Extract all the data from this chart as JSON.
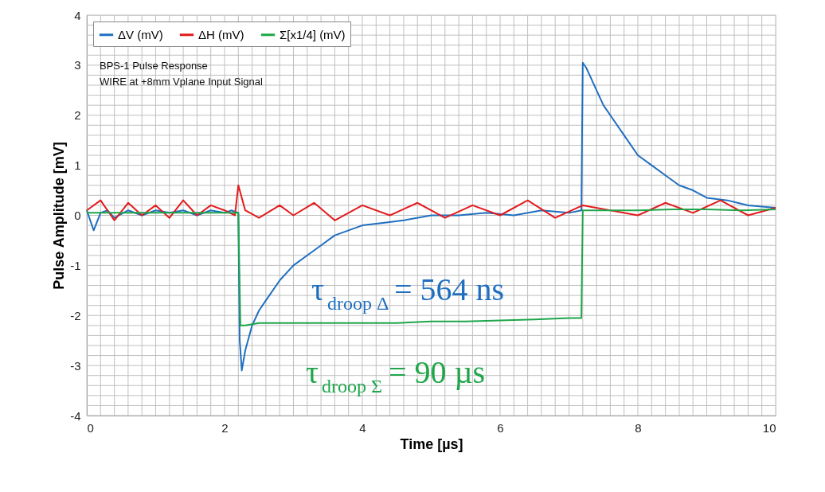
{
  "chart_data": {
    "type": "line",
    "xlabel": "Time [µs]",
    "ylabel": "Pulse Amplitude [mV]",
    "xlim": [
      0,
      10
    ],
    "ylim": [
      -4,
      4
    ],
    "xticks": [
      0,
      {
        "value": 0.2,
        "label": null
      },
      {
        "value": 0.4,
        "label": null
      },
      {
        "value": 0.6,
        "label": null
      },
      {
        "value": 0.8,
        "label": null
      },
      {
        "value": 1,
        "label": null
      },
      {
        "value": 1.2,
        "label": null
      },
      {
        "value": 1.4,
        "label": null
      },
      {
        "value": 1.6,
        "label": null
      },
      {
        "value": 1.8,
        "label": null
      },
      2,
      {
        "value": 2.2,
        "label": null
      },
      {
        "value": 2.4,
        "label": null
      },
      {
        "value": 2.6,
        "label": null
      },
      {
        "value": 2.8,
        "label": null
      },
      {
        "value": 3,
        "label": null
      },
      {
        "value": 3.2,
        "label": null
      },
      {
        "value": 3.4,
        "label": null
      },
      {
        "value": 3.6,
        "label": null
      },
      {
        "value": 3.8,
        "label": null
      },
      4,
      {
        "value": 4.2,
        "label": null
      },
      {
        "value": 4.4,
        "label": null
      },
      {
        "value": 4.6,
        "label": null
      },
      {
        "value": 4.8,
        "label": null
      },
      {
        "value": 5,
        "label": null
      },
      {
        "value": 5.2,
        "label": null
      },
      {
        "value": 5.4,
        "label": null
      },
      {
        "value": 5.6,
        "label": null
      },
      {
        "value": 5.8,
        "label": null
      },
      6,
      {
        "value": 6.2,
        "label": null
      },
      {
        "value": 6.4,
        "label": null
      },
      {
        "value": 6.6,
        "label": null
      },
      {
        "value": 6.8,
        "label": null
      },
      {
        "value": 7,
        "label": null
      },
      {
        "value": 7.2,
        "label": null
      },
      {
        "value": 7.4,
        "label": null
      },
      {
        "value": 7.6,
        "label": null
      },
      {
        "value": 7.8,
        "label": null
      },
      8,
      {
        "value": 8.2,
        "label": null
      },
      {
        "value": 8.4,
        "label": null
      },
      {
        "value": 8.6,
        "label": null
      },
      {
        "value": 8.8,
        "label": null
      },
      {
        "value": 9,
        "label": null
      },
      {
        "value": 9.2,
        "label": null
      },
      {
        "value": 9.4,
        "label": null
      },
      {
        "value": 9.6,
        "label": null
      },
      {
        "value": 9.8,
        "label": null
      },
      10
    ],
    "yticks": [
      -4,
      {
        "value": -3.8,
        "label": null
      },
      {
        "value": -3.6,
        "label": null
      },
      {
        "value": -3.4,
        "label": null
      },
      {
        "value": -3.2,
        "label": null
      },
      -3,
      {
        "value": -2.8,
        "label": null
      },
      {
        "value": -2.6,
        "label": null
      },
      {
        "value": -2.4,
        "label": null
      },
      {
        "value": -2.2,
        "label": null
      },
      -2,
      {
        "value": -1.8,
        "label": null
      },
      {
        "value": -1.6,
        "label": null
      },
      {
        "value": -1.4,
        "label": null
      },
      {
        "value": -1.2,
        "label": null
      },
      -1,
      {
        "value": -0.8,
        "label": null
      },
      {
        "value": -0.6,
        "label": null
      },
      {
        "value": -0.4,
        "label": null
      },
      {
        "value": -0.2,
        "label": null
      },
      0,
      {
        "value": 0.2,
        "label": null
      },
      {
        "value": 0.4,
        "label": null
      },
      {
        "value": 0.6,
        "label": null
      },
      {
        "value": 0.8,
        "label": null
      },
      1,
      {
        "value": 1.2,
        "label": null
      },
      {
        "value": 1.4,
        "label": null
      },
      {
        "value": 1.6,
        "label": null
      },
      {
        "value": 1.8,
        "label": null
      },
      2,
      {
        "value": 2.2,
        "label": null
      },
      {
        "value": 2.4,
        "label": null
      },
      {
        "value": 2.6,
        "label": null
      },
      {
        "value": 2.8,
        "label": null
      },
      3,
      {
        "value": 3.2,
        "label": null
      },
      {
        "value": 3.4,
        "label": null
      },
      {
        "value": 3.6,
        "label": null
      },
      {
        "value": 3.8,
        "label": null
      },
      4
    ],
    "grid": true,
    "legend": "top left",
    "marker": "none",
    "line_style": "solid",
    "series": [
      {
        "name": "ΔV (mV)",
        "color": "#1f6fc0",
        "x": [
          0,
          0.1,
          0.2,
          0.3,
          0.4,
          0.6,
          0.8,
          1.0,
          1.2,
          1.4,
          1.6,
          1.8,
          2.0,
          2.1,
          2.2,
          2.22,
          2.25,
          2.3,
          2.4,
          2.5,
          2.6,
          2.8,
          3.0,
          3.2,
          3.4,
          3.6,
          3.8,
          4.0,
          4.3,
          4.6,
          5.0,
          5.4,
          5.8,
          6.2,
          6.6,
          7.0,
          7.18,
          7.2,
          7.25,
          7.3,
          7.4,
          7.5,
          7.6,
          7.8,
          8.0,
          8.2,
          8.4,
          8.6,
          8.8,
          9.0,
          9.3,
          9.6,
          10
        ],
        "values": [
          0.1,
          -0.3,
          0.05,
          0.1,
          -0.05,
          0.1,
          0.0,
          0.1,
          0.05,
          0.1,
          0.0,
          0.1,
          0.05,
          0.1,
          0.05,
          -2.5,
          -3.1,
          -2.7,
          -2.2,
          -1.9,
          -1.7,
          -1.3,
          -1.0,
          -0.8,
          -0.6,
          -0.4,
          -0.3,
          -0.2,
          -0.15,
          -0.1,
          0.0,
          0.0,
          0.05,
          0.0,
          0.1,
          0.05,
          0.1,
          3.05,
          2.95,
          2.8,
          2.5,
          2.2,
          2.0,
          1.6,
          1.2,
          1.0,
          0.8,
          0.6,
          0.5,
          0.35,
          0.3,
          0.2,
          0.15
        ]
      },
      {
        "name": "ΔH (mV)",
        "color": "#e31a1c",
        "x": [
          0,
          0.2,
          0.4,
          0.6,
          0.8,
          1.0,
          1.2,
          1.4,
          1.6,
          1.8,
          2.0,
          2.15,
          2.2,
          2.3,
          2.5,
          2.8,
          3.0,
          3.3,
          3.6,
          4.0,
          4.4,
          4.8,
          5.2,
          5.6,
          6.0,
          6.4,
          6.8,
          7.2,
          7.6,
          8.0,
          8.4,
          8.8,
          9.2,
          9.6,
          10
        ],
        "values": [
          0.1,
          0.3,
          -0.1,
          0.25,
          0.0,
          0.2,
          -0.05,
          0.3,
          0.0,
          0.2,
          0.1,
          0.0,
          0.6,
          0.1,
          -0.05,
          0.2,
          0.0,
          0.25,
          -0.1,
          0.2,
          0.0,
          0.25,
          -0.05,
          0.2,
          0.0,
          0.3,
          -0.05,
          0.2,
          0.1,
          0.0,
          0.25,
          0.05,
          0.3,
          0.0,
          0.15
        ]
      },
      {
        "name": "Σ[x1/4] (mV)",
        "color": "#1fa64a",
        "x": [
          0,
          0.5,
          1.0,
          1.5,
          2.0,
          2.2,
          2.23,
          2.3,
          2.5,
          3.0,
          3.5,
          4.0,
          4.5,
          5.0,
          5.5,
          6.0,
          6.5,
          7.0,
          7.18,
          7.2,
          7.5,
          8.0,
          8.5,
          9.0,
          9.5,
          10
        ],
        "values": [
          0.05,
          0.05,
          0.05,
          0.05,
          0.05,
          0.05,
          -2.2,
          -2.2,
          -2.15,
          -2.15,
          -2.15,
          -2.15,
          -2.15,
          -2.12,
          -2.12,
          -2.1,
          -2.08,
          -2.05,
          -2.05,
          0.1,
          0.1,
          0.1,
          0.12,
          0.12,
          0.1,
          0.12
        ]
      }
    ],
    "annotations": [
      "BPS-1 Pulse Response",
      "WIRE at +8mm Vplane Input Signal",
      "τ$_{droop Δ}$ = 564 ns",
      "τ$_{droop Σ}$ = 90 µs"
    ]
  }
}
